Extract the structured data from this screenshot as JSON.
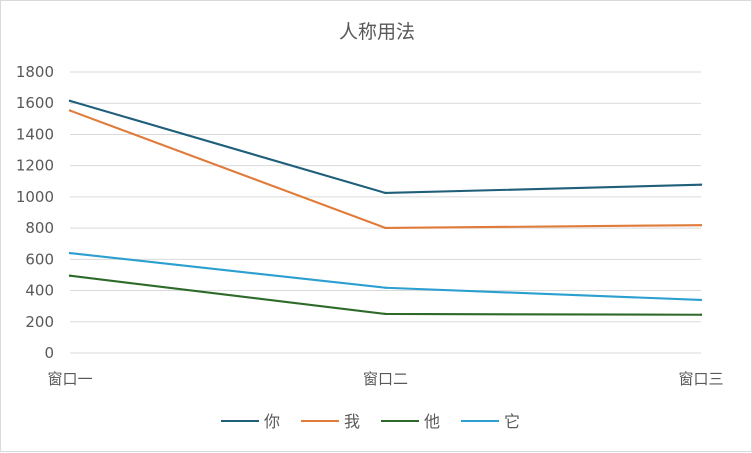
{
  "chart_data": {
    "type": "line",
    "title": "人称用法",
    "categories": [
      "窗口一",
      "窗口二",
      "窗口三"
    ],
    "series": [
      {
        "name": "你",
        "values": [
          1615,
          1025,
          1078
        ],
        "color": "#1f5f7a"
      },
      {
        "name": "我",
        "values": [
          1553,
          801,
          819
        ],
        "color": "#e07b39"
      },
      {
        "name": "他",
        "values": [
          495,
          250,
          245
        ],
        "color": "#2e6b2a"
      },
      {
        "name": "它",
        "values": [
          640,
          418,
          340
        ],
        "color": "#2a9fd0"
      }
    ],
    "ylim": [
      0,
      1800
    ],
    "yticks": [
      0,
      200,
      400,
      600,
      800,
      1000,
      1200,
      1400,
      1600,
      1800
    ],
    "xlabel": "",
    "ylabel": "",
    "grid": true,
    "legend": "bottom"
  }
}
